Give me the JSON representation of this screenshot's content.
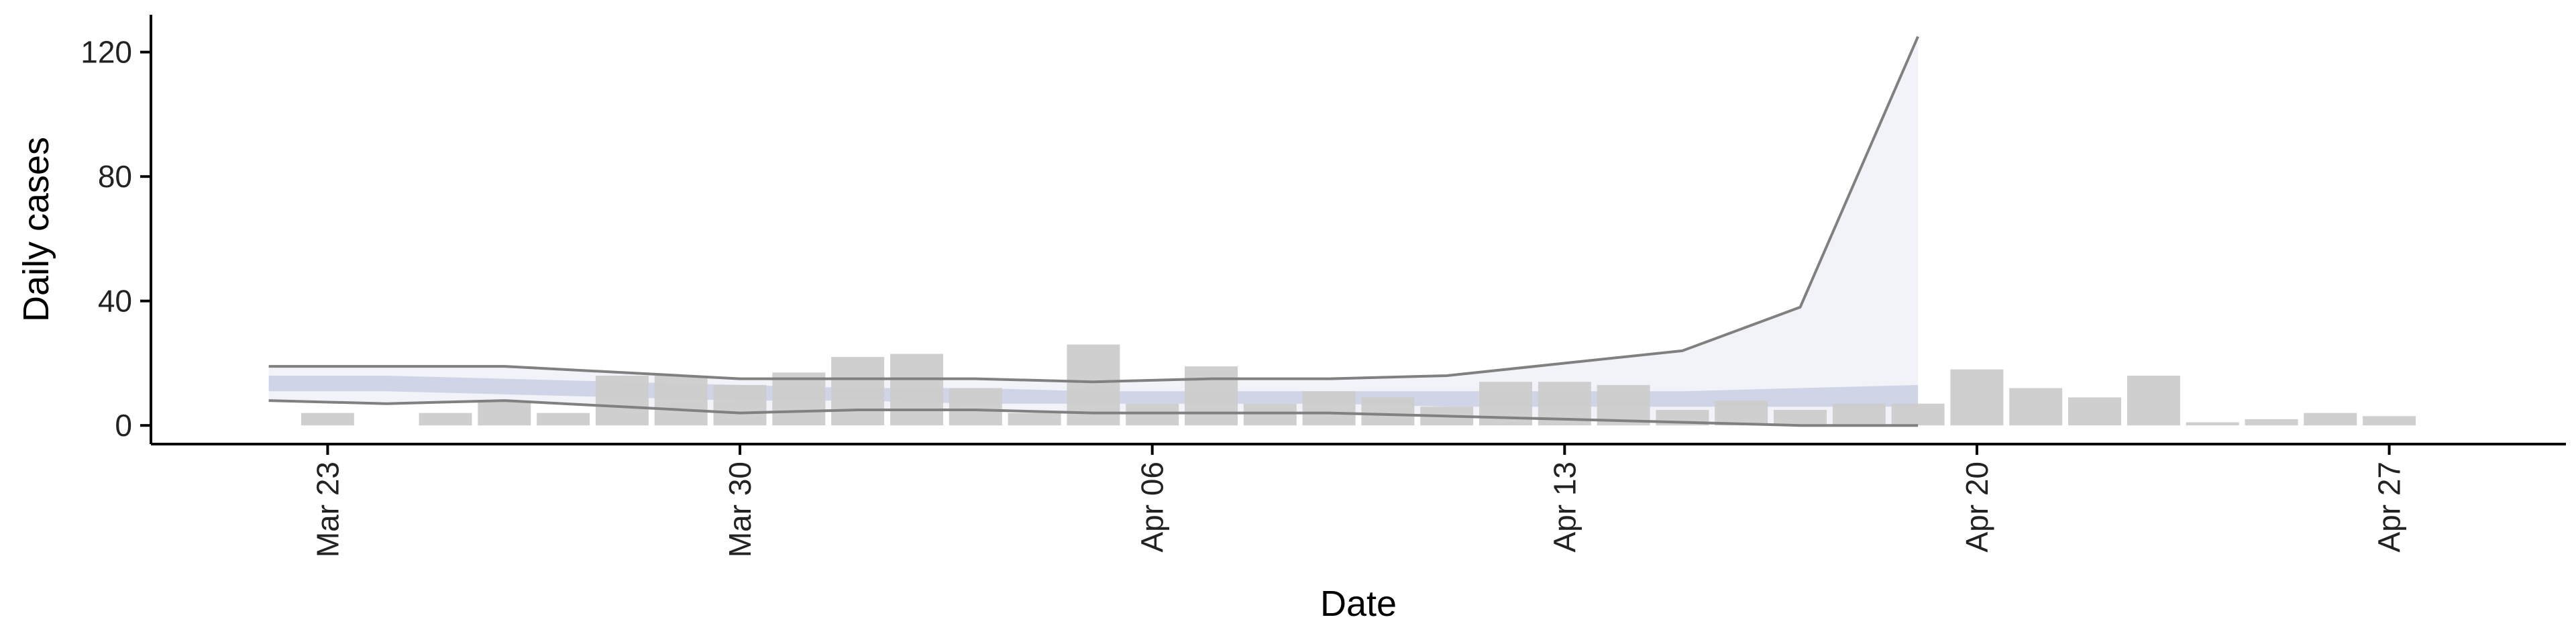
{
  "chart_data": {
    "type": "bar",
    "title": "",
    "xlabel": "Date",
    "ylabel": "Daily cases",
    "ylim": [
      -6,
      132
    ],
    "xlim": [
      "2020-03-20",
      "2020-04-30"
    ],
    "grid": false,
    "legend": "none",
    "y_ticks": [
      0,
      40,
      80,
      120
    ],
    "x_ticks": [
      {
        "date": "2020-03-23",
        "label": "Mar 23"
      },
      {
        "date": "2020-03-30",
        "label": "Mar 30"
      },
      {
        "date": "2020-04-06",
        "label": "Apr 06"
      },
      {
        "date": "2020-04-13",
        "label": "Apr 13"
      },
      {
        "date": "2020-04-20",
        "label": "Apr 20"
      },
      {
        "date": "2020-04-27",
        "label": "Apr 27"
      }
    ],
    "colors": {
      "bars": "#cccccc",
      "bounds_line": "#808080",
      "outer_band": "#e8ebf5",
      "inner_band": "#c3cbe0",
      "axis": "#000000"
    },
    "series": [
      {
        "type": "bar",
        "dates": [
          "2020-03-23",
          "2020-03-24",
          "2020-03-25",
          "2020-03-26",
          "2020-03-27",
          "2020-03-28",
          "2020-03-29",
          "2020-03-30",
          "2020-03-31",
          "2020-04-01",
          "2020-04-02",
          "2020-04-03",
          "2020-04-04",
          "2020-04-05",
          "2020-04-06",
          "2020-04-07",
          "2020-04-08",
          "2020-04-09",
          "2020-04-10",
          "2020-04-11",
          "2020-04-12",
          "2020-04-13",
          "2020-04-14",
          "2020-04-15",
          "2020-04-16",
          "2020-04-17",
          "2020-04-18",
          "2020-04-19",
          "2020-04-20",
          "2020-04-21",
          "2020-04-22",
          "2020-04-23",
          "2020-04-24",
          "2020-04-25",
          "2020-04-26",
          "2020-04-27",
          "2020-04-28"
        ],
        "values": [
          4,
          0,
          4,
          8,
          4,
          16,
          16,
          13,
          17,
          22,
          23,
          12,
          4,
          26,
          7,
          19,
          7,
          11,
          9,
          6,
          14,
          14,
          13,
          5,
          8,
          5,
          7,
          7,
          18,
          12,
          9,
          16,
          1,
          2,
          4,
          3,
          0
        ]
      },
      {
        "type": "area",
        "dates": [
          "2020-03-22",
          "2020-03-24",
          "2020-03-26",
          "2020-03-28",
          "2020-03-30",
          "2020-04-01",
          "2020-04-03",
          "2020-04-05",
          "2020-04-07",
          "2020-04-09",
          "2020-04-11",
          "2020-04-13",
          "2020-04-15",
          "2020-04-17",
          "2020-04-19"
        ],
        "lower": [
          8,
          7,
          8,
          6,
          4,
          5,
          5,
          4,
          4,
          4,
          3,
          2,
          1,
          0,
          0
        ],
        "upper": [
          19,
          19,
          19,
          17,
          15,
          15,
          15,
          14,
          15,
          15,
          16,
          20,
          24,
          38,
          125
        ]
      },
      {
        "type": "area",
        "dates": [
          "2020-03-22",
          "2020-03-24",
          "2020-03-26",
          "2020-03-28",
          "2020-03-30",
          "2020-04-01",
          "2020-04-03",
          "2020-04-05",
          "2020-04-07",
          "2020-04-09",
          "2020-04-11",
          "2020-04-13",
          "2020-04-15",
          "2020-04-17",
          "2020-04-19"
        ],
        "lower": [
          11,
          11,
          10,
          9,
          8,
          8,
          7,
          7,
          7,
          7,
          6,
          6,
          6,
          6,
          6
        ],
        "upper": [
          16,
          16,
          15,
          14,
          13,
          12,
          12,
          11,
          11,
          11,
          11,
          11,
          11,
          12,
          13
        ]
      }
    ]
  }
}
